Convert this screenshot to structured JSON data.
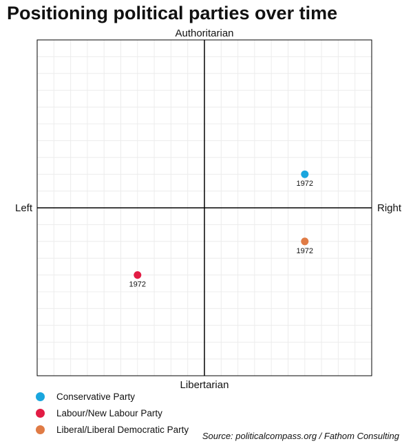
{
  "title": "Positioning political parties over time",
  "source": "Source: politicalcompass.org / Fathom Consulting",
  "chart_data": {
    "type": "scatter",
    "title": "Positioning political parties over time",
    "axis_labels": {
      "top": "Authoritarian",
      "bottom": "Libertarian",
      "left": "Left",
      "right": "Right"
    },
    "xlim": [
      -10,
      10
    ],
    "ylim": [
      -10,
      10
    ],
    "grid": true,
    "legend_position": "bottom-left",
    "series": [
      {
        "name": "Conservative Party",
        "color": "#1aa6de",
        "points": [
          {
            "x": 6,
            "y": 2,
            "label": "1972"
          }
        ]
      },
      {
        "name": "Labour/New Labour Party",
        "color": "#e21c44",
        "points": [
          {
            "x": -4,
            "y": -4,
            "label": "1972"
          }
        ]
      },
      {
        "name": "Liberal/Liberal Democratic Party",
        "color": "#e07b45",
        "points": [
          {
            "x": 6,
            "y": -2,
            "label": "1972"
          }
        ]
      }
    ]
  }
}
